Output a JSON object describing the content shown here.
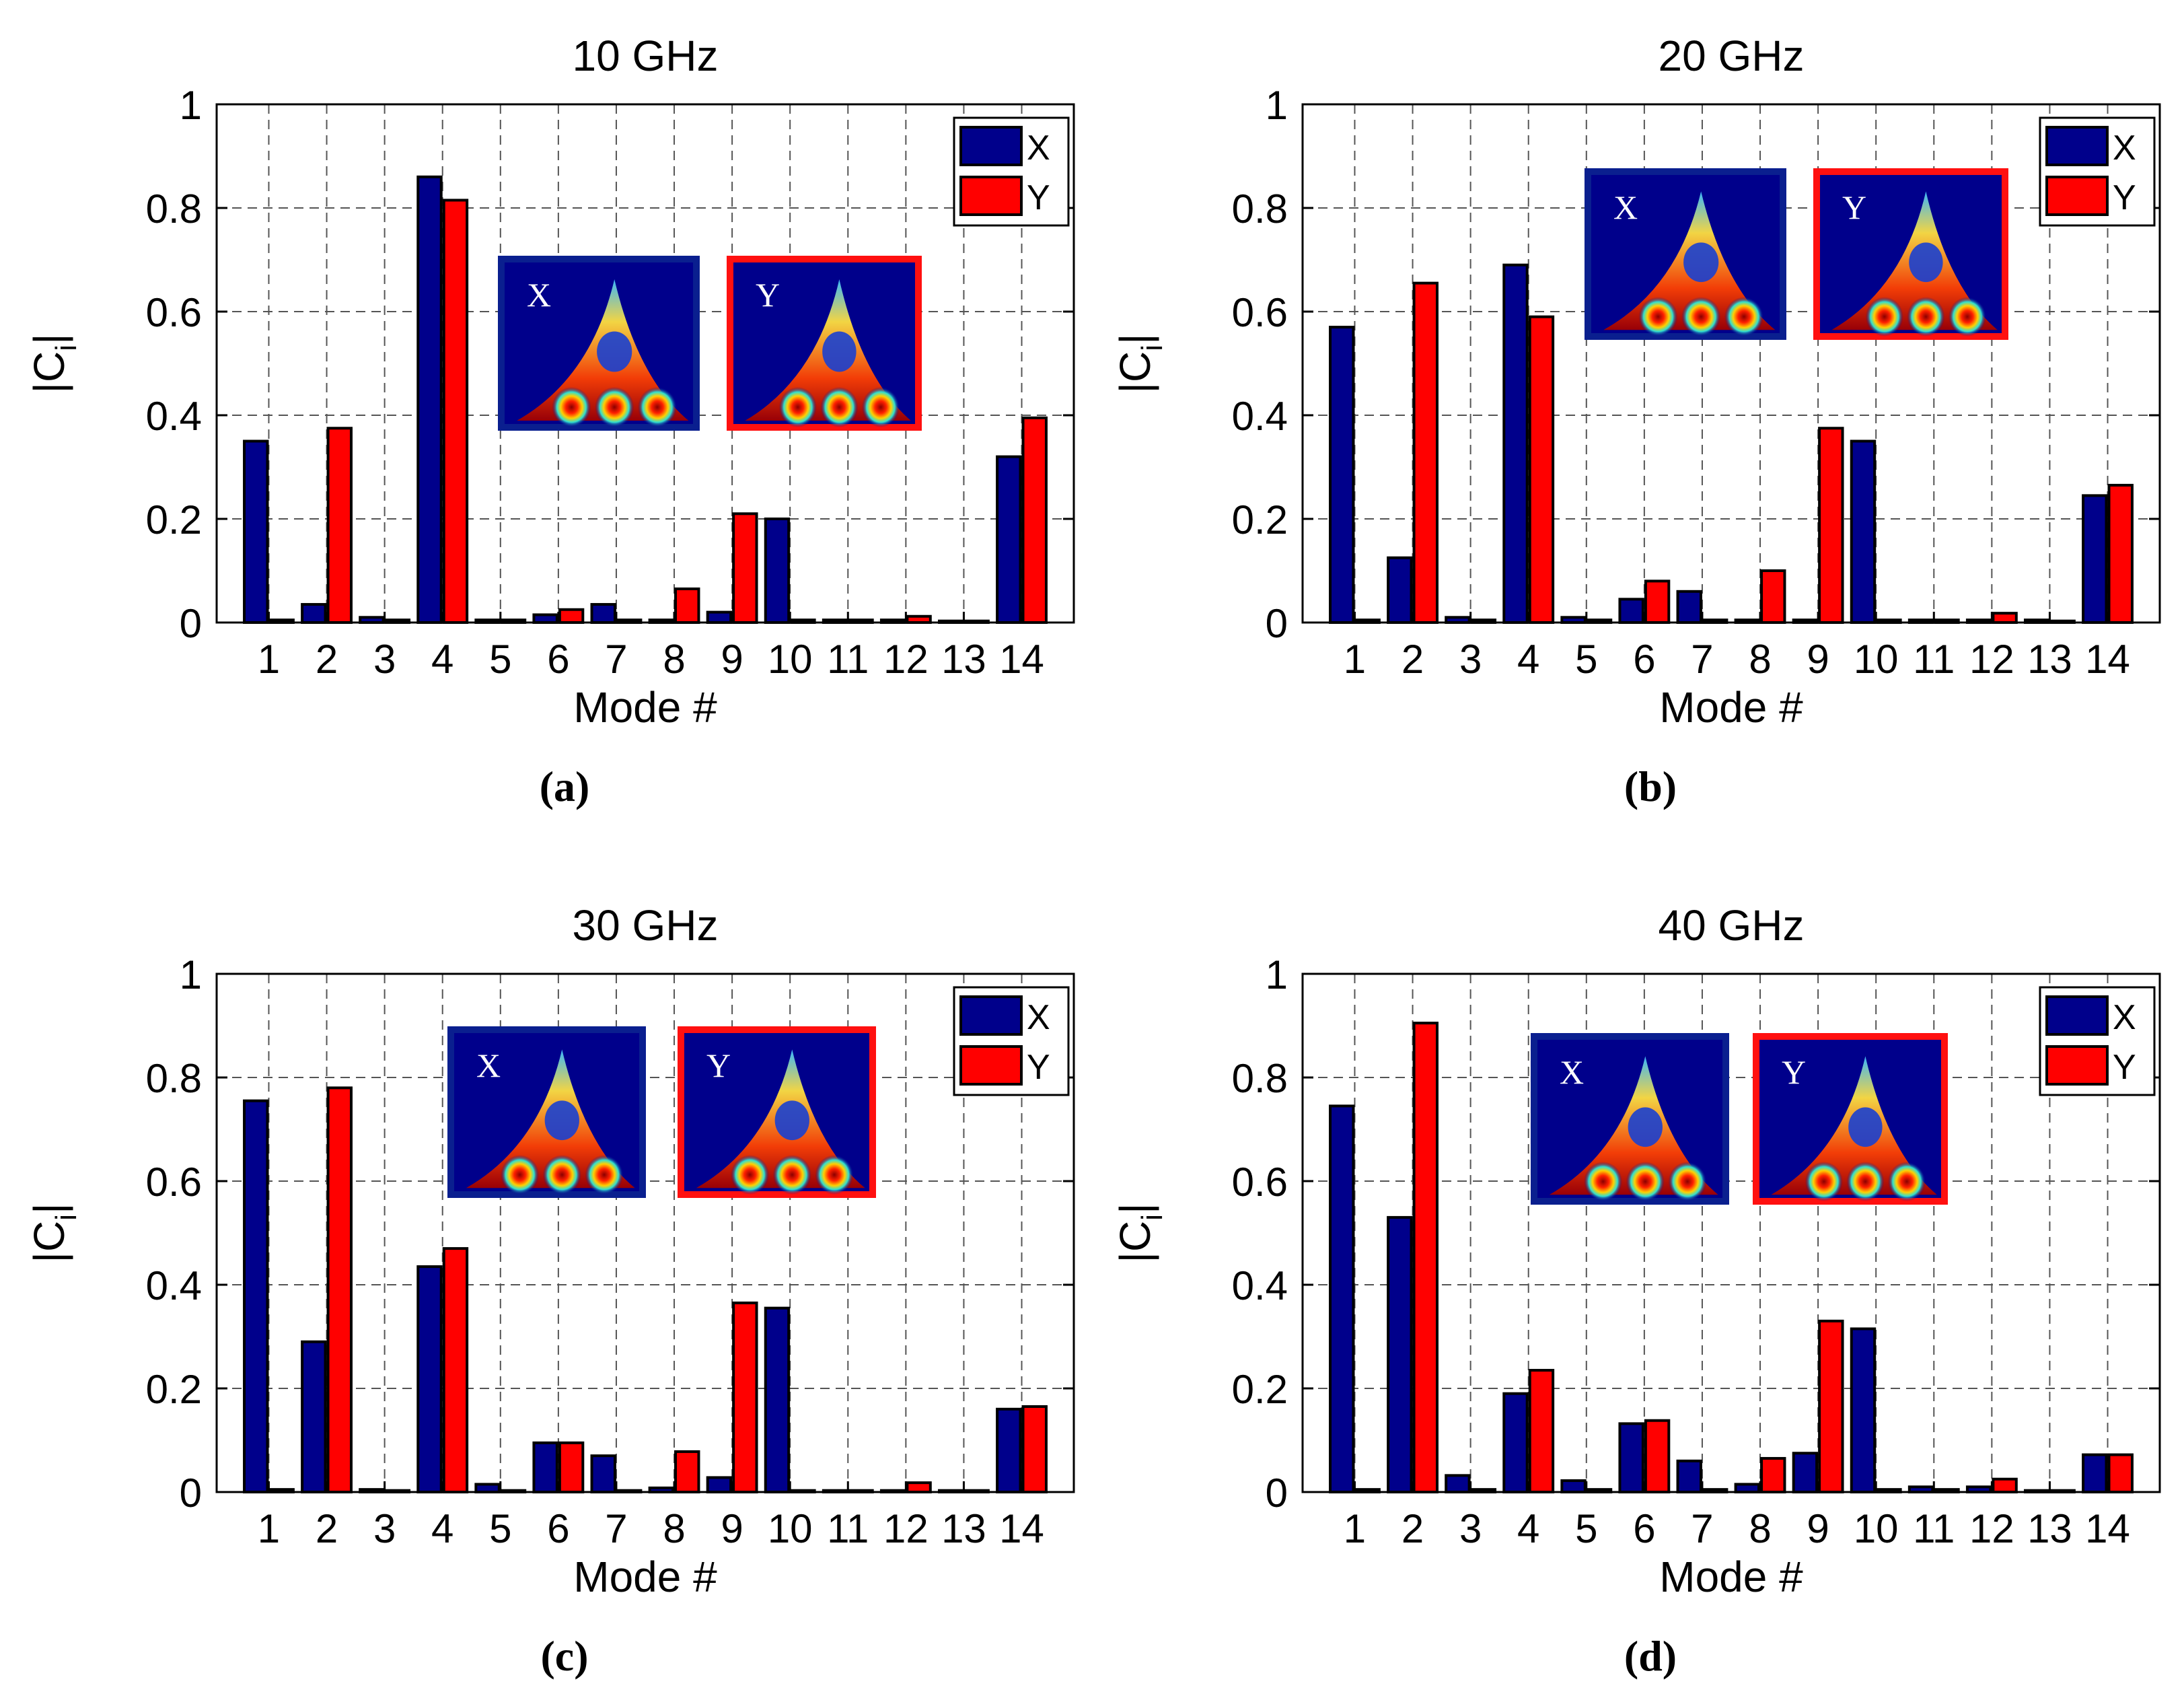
{
  "colors": {
    "x_series": "#00008b",
    "y_series": "#ff0000",
    "grid": "#555555",
    "axis": "#000000",
    "inset_x_frame": "#0a1f8f",
    "inset_y_frame": "#ff1010",
    "field_background": "#00008b"
  },
  "chart_data": [
    {
      "type": "bar",
      "panel": "(a)",
      "title": "10 GHz",
      "xlabel": "Mode #",
      "ylabel": "|C",
      "ylabel_sub": "i",
      "ylabel_close": "|",
      "ylim": [
        0,
        1
      ],
      "yticks": [
        "0",
        "0.2",
        "0.4",
        "0.6",
        "0.8",
        "1"
      ],
      "grid": true,
      "legend": "top-right",
      "categories": [
        "1",
        "2",
        "3",
        "4",
        "5",
        "6",
        "7",
        "8",
        "9",
        "10",
        "11",
        "12",
        "13",
        "14"
      ],
      "series": [
        {
          "name": "X",
          "values": [
            0.35,
            0.035,
            0.01,
            0.86,
            0.005,
            0.015,
            0.035,
            0.005,
            0.02,
            0.2,
            0.005,
            0.005,
            0.003,
            0.32
          ]
        },
        {
          "name": "Y",
          "values": [
            0.005,
            0.375,
            0.005,
            0.815,
            0.005,
            0.025,
            0.005,
            0.065,
            0.21,
            0.005,
            0.005,
            0.012,
            0.003,
            0.395
          ]
        }
      ],
      "insets": [
        "X",
        "Y"
      ]
    },
    {
      "type": "bar",
      "panel": "(b)",
      "title": "20 GHz",
      "xlabel": "Mode #",
      "ylabel": "|C",
      "ylabel_sub": "i",
      "ylabel_close": "|",
      "ylim": [
        0,
        1
      ],
      "yticks": [
        "0",
        "0.2",
        "0.4",
        "0.6",
        "0.8",
        "1"
      ],
      "grid": true,
      "legend": "top-right",
      "categories": [
        "1",
        "2",
        "3",
        "4",
        "5",
        "6",
        "7",
        "8",
        "9",
        "10",
        "11",
        "12",
        "13",
        "14"
      ],
      "series": [
        {
          "name": "X",
          "values": [
            0.57,
            0.125,
            0.01,
            0.69,
            0.01,
            0.045,
            0.06,
            0.005,
            0.005,
            0.35,
            0.005,
            0.005,
            0.005,
            0.245
          ]
        },
        {
          "name": "Y",
          "values": [
            0.005,
            0.655,
            0.005,
            0.59,
            0.005,
            0.08,
            0.005,
            0.1,
            0.375,
            0.005,
            0.005,
            0.018,
            0.003,
            0.265
          ]
        }
      ],
      "insets": [
        "X",
        "Y"
      ]
    },
    {
      "type": "bar",
      "panel": "(c)",
      "title": "30 GHz",
      "xlabel": "Mode #",
      "ylabel": "|C",
      "ylabel_sub": "i",
      "ylabel_close": "|",
      "ylim": [
        0,
        1
      ],
      "yticks": [
        "0",
        "0.2",
        "0.4",
        "0.6",
        "0.8",
        "1"
      ],
      "grid": true,
      "legend": "top-right",
      "categories": [
        "1",
        "2",
        "3",
        "4",
        "5",
        "6",
        "7",
        "8",
        "9",
        "10",
        "11",
        "12",
        "13",
        "14"
      ],
      "series": [
        {
          "name": "X",
          "values": [
            0.755,
            0.29,
            0.005,
            0.435,
            0.015,
            0.095,
            0.07,
            0.008,
            0.028,
            0.355,
            0.003,
            0.003,
            0.003,
            0.16
          ]
        },
        {
          "name": "Y",
          "values": [
            0.005,
            0.78,
            0.003,
            0.47,
            0.003,
            0.095,
            0.003,
            0.078,
            0.365,
            0.003,
            0.003,
            0.018,
            0.003,
            0.165
          ]
        }
      ],
      "insets": [
        "X",
        "Y"
      ]
    },
    {
      "type": "bar",
      "panel": "(d)",
      "title": "40 GHz",
      "xlabel": "Mode #",
      "ylabel": "|C",
      "ylabel_sub": "i",
      "ylabel_close": "|",
      "ylim": [
        0,
        1
      ],
      "yticks": [
        "0",
        "0.2",
        "0.4",
        "0.6",
        "0.8",
        "1"
      ],
      "grid": true,
      "legend": "top-right",
      "categories": [
        "1",
        "2",
        "3",
        "4",
        "5",
        "6",
        "7",
        "8",
        "9",
        "10",
        "11",
        "12",
        "13",
        "14"
      ],
      "series": [
        {
          "name": "X",
          "values": [
            0.745,
            0.53,
            0.032,
            0.19,
            0.022,
            0.132,
            0.06,
            0.015,
            0.075,
            0.315,
            0.01,
            0.01,
            0.003,
            0.072
          ]
        },
        {
          "name": "Y",
          "values": [
            0.005,
            0.905,
            0.005,
            0.235,
            0.005,
            0.138,
            0.005,
            0.065,
            0.33,
            0.005,
            0.005,
            0.025,
            0.003,
            0.072
          ]
        }
      ],
      "insets": [
        "X",
        "Y"
      ]
    }
  ]
}
